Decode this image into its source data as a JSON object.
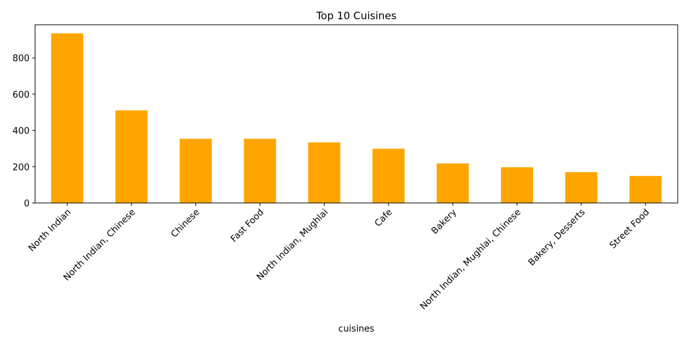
{
  "chart_data": {
    "type": "bar",
    "title": "Top 10 Cuisines",
    "xlabel": "cuisines",
    "ylabel": "",
    "categories": [
      "North Indian",
      "North Indian, Chinese",
      "Chinese",
      "Fast Food",
      "North Indian, Mughlai",
      "Cafe",
      "Bakery",
      "North Indian, Mughlai, Chinese",
      "Bakery, Desserts",
      "Street Food"
    ],
    "values": [
      936,
      511,
      354,
      354,
      334,
      299,
      218,
      197,
      170,
      149
    ],
    "ylim": [
      0,
      983
    ],
    "yticks": [
      0,
      200,
      400,
      600,
      800
    ],
    "bar_color": "#FFA500",
    "grid": false,
    "legend": "none"
  }
}
